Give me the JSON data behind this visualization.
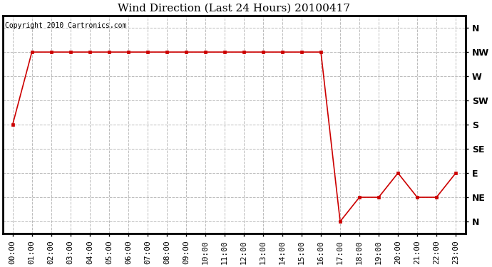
{
  "title": "Wind Direction (Last 24 Hours) 20100417",
  "copyright": "Copyright 2010 Cartronics.com",
  "background_color": "#ffffff",
  "line_color": "#cc0000",
  "grid_color": "#aaaaaa",
  "x_values": [
    0,
    1,
    2,
    3,
    4,
    5,
    6,
    7,
    8,
    9,
    10,
    11,
    12,
    13,
    14,
    15,
    16,
    17,
    18,
    19,
    20,
    21,
    22,
    23
  ],
  "y_values": [
    4,
    7,
    7,
    7,
    7,
    7,
    7,
    7,
    7,
    7,
    7,
    7,
    7,
    7,
    7,
    7,
    7,
    0,
    1,
    1,
    2,
    1,
    1,
    2
  ],
  "y_tick_positions": [
    0,
    1,
    2,
    3,
    4,
    5,
    6,
    7,
    8
  ],
  "y_tick_labels": [
    "N",
    "NE",
    "E",
    "SE",
    "S",
    "SW",
    "W",
    "NW",
    "N"
  ],
  "title_fontsize": 11,
  "copyright_fontsize": 7,
  "tick_fontsize": 8,
  "y_tick_fontsize": 9
}
